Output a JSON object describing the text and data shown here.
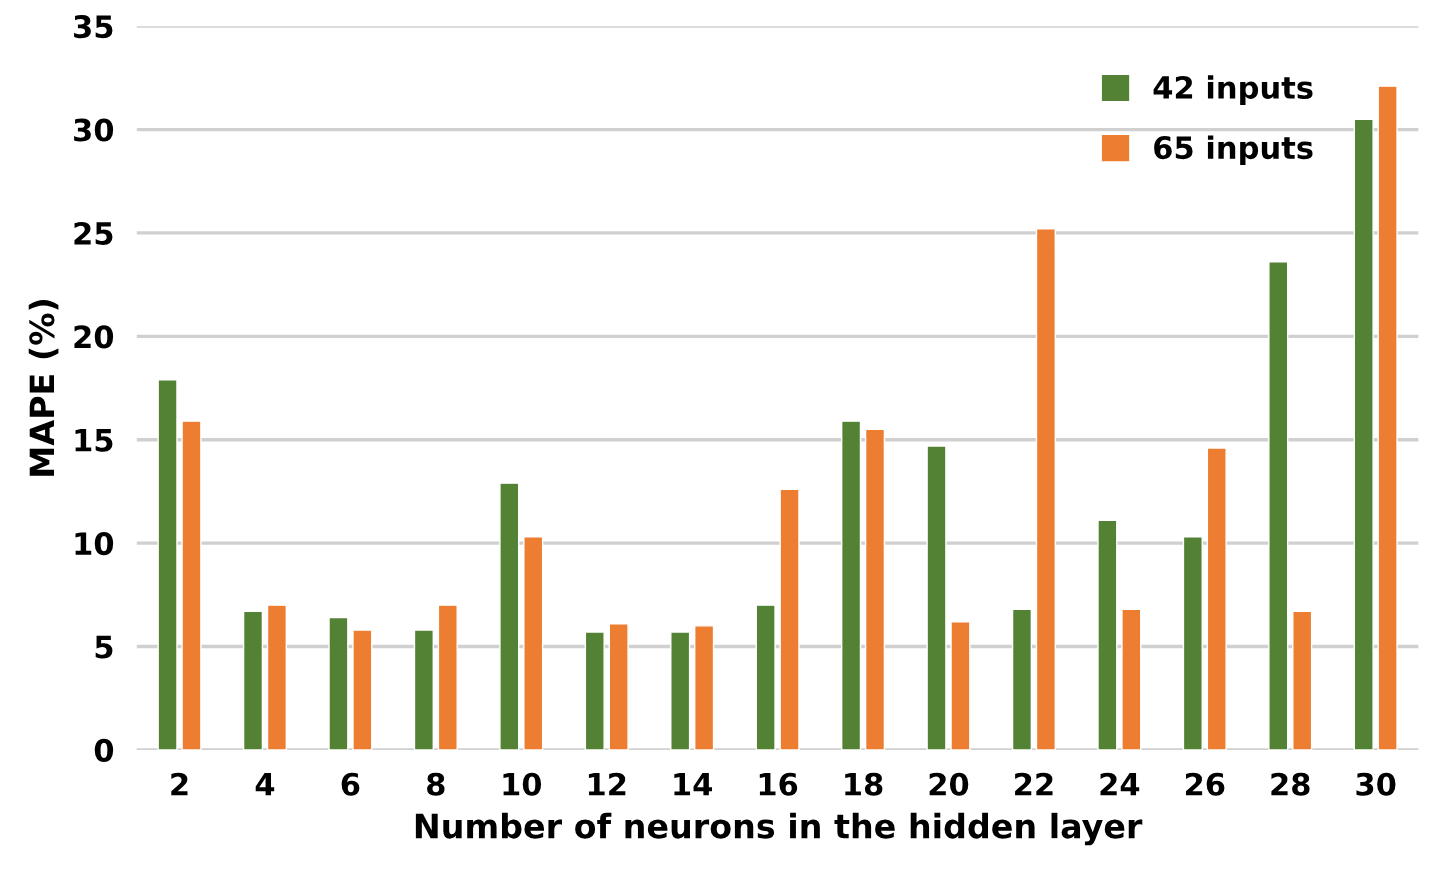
{
  "chart_data": {
    "type": "bar",
    "xlabel": "Number of neurons in the hidden layer",
    "ylabel": "MAPE (%)",
    "categories": [
      "2",
      "4",
      "6",
      "8",
      "10",
      "12",
      "14",
      "16",
      "18",
      "20",
      "22",
      "24",
      "26",
      "28",
      "30"
    ],
    "series": [
      {
        "name": "42 inputs",
        "color": "#548235",
        "values": [
          17.9,
          6.7,
          6.4,
          5.8,
          12.9,
          5.7,
          5.7,
          7.0,
          15.9,
          14.7,
          6.8,
          11.1,
          10.3,
          23.6,
          30.5
        ]
      },
      {
        "name": "65 inputs",
        "color": "#ed7d31",
        "values": [
          15.9,
          7.0,
          5.8,
          7.0,
          10.3,
          6.1,
          6.0,
          12.6,
          15.5,
          6.2,
          25.2,
          6.8,
          14.6,
          6.7,
          32.1
        ]
      }
    ],
    "ylim": [
      0,
      35
    ],
    "yticks": [
      0,
      5,
      10,
      15,
      20,
      25,
      30,
      35
    ],
    "grid": "y",
    "legend": "top right"
  }
}
